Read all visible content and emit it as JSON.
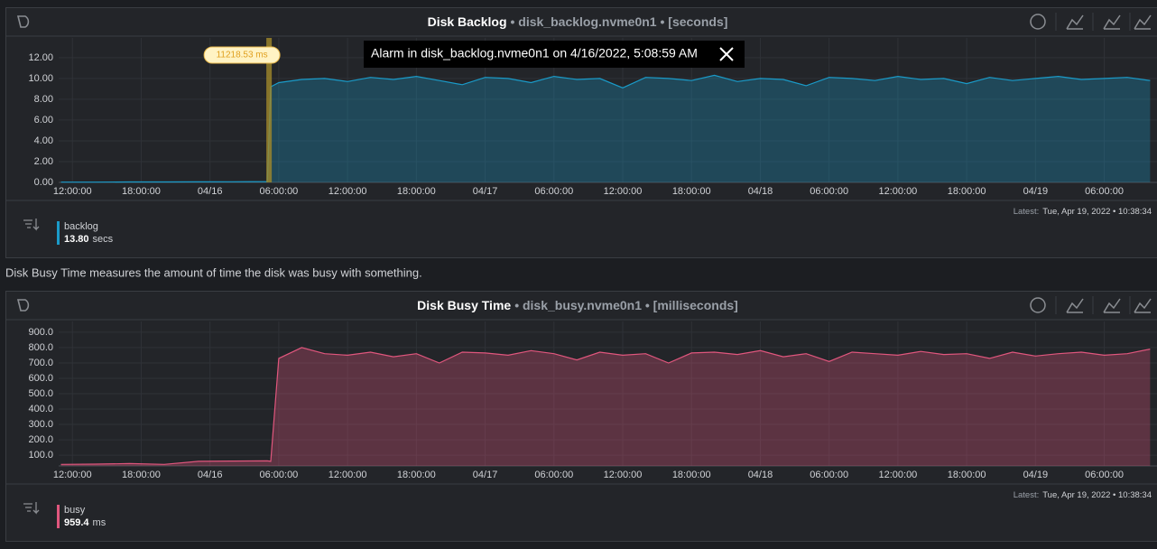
{
  "description": "Disk Busy Time measures the amount of time the disk was busy with something.",
  "chart_data": [
    {
      "type": "area",
      "title": "Disk Backlog",
      "subtitle": "• disk_backlog.nvme0n1 • [seconds]",
      "x": [
        -1,
        2,
        5,
        8,
        11,
        14,
        17,
        17.3,
        18,
        20,
        22,
        24,
        26,
        28,
        30,
        32,
        34,
        36,
        38,
        40,
        42,
        44,
        46,
        48,
        50,
        52,
        54,
        56,
        58,
        60,
        62,
        64,
        66,
        68,
        70,
        72,
        74,
        76,
        78,
        80,
        82,
        84,
        86,
        88,
        90,
        92,
        94
      ],
      "series": [
        {
          "name": "backlog",
          "color": "#1a9bc9",
          "values": [
            0.03,
            0.03,
            0.04,
            0.04,
            0.05,
            0.06,
            0.08,
            9.2,
            9.6,
            9.9,
            10.0,
            9.7,
            10.1,
            9.9,
            10.2,
            9.8,
            9.4,
            10.1,
            10.0,
            9.6,
            10.2,
            9.9,
            10.0,
            9.1,
            10.1,
            10.0,
            9.8,
            10.3,
            9.7,
            10.0,
            9.9,
            9.3,
            10.1,
            10.0,
            9.8,
            10.2,
            9.9,
            10.0,
            9.5,
            10.1,
            9.8,
            10.0,
            10.2,
            9.9,
            10.0,
            10.1,
            9.8
          ]
        }
      ],
      "xlim": [
        -1.2,
        94.6
      ],
      "xticks": [
        {
          "value": 0,
          "label": "12:00:00"
        },
        {
          "value": 6,
          "label": "18:00:00"
        },
        {
          "value": 12,
          "label": "04/16"
        },
        {
          "value": 18,
          "label": "06:00:00"
        },
        {
          "value": 24,
          "label": "12:00:00"
        },
        {
          "value": 30,
          "label": "18:00:00"
        },
        {
          "value": 36,
          "label": "04/17"
        },
        {
          "value": 42,
          "label": "06:00:00"
        },
        {
          "value": 48,
          "label": "12:00:00"
        },
        {
          "value": 54,
          "label": "18:00:00"
        },
        {
          "value": 60,
          "label": "04/18"
        },
        {
          "value": 66,
          "label": "06:00:00"
        },
        {
          "value": 72,
          "label": "12:00:00"
        },
        {
          "value": 78,
          "label": "18:00:00"
        },
        {
          "value": 84,
          "label": "04/19"
        },
        {
          "value": 90,
          "label": "06:00:00"
        }
      ],
      "ylim": [
        0,
        13.9
      ],
      "yticks": [
        {
          "value": 0,
          "label": "0.00"
        },
        {
          "value": 2,
          "label": "2.00"
        },
        {
          "value": 4,
          "label": "4.00"
        },
        {
          "value": 6,
          "label": "6.00"
        },
        {
          "value": 8,
          "label": "8.00"
        },
        {
          "value": 10,
          "label": "10.00"
        },
        {
          "value": 12,
          "label": "12.00"
        }
      ],
      "legend_value": "13.80",
      "legend_unit": "secs",
      "latest_label": "Latest:",
      "latest": "Tue, Apr 19, 2022 • 10:38:34",
      "annotation": {
        "x": 17.15,
        "label": "11218.53 ms"
      },
      "alarm": "Alarm in disk_backlog.nvme0n1 on 4/16/2022, 5:08:59 AM"
    },
    {
      "type": "area",
      "title": "Disk Busy Time",
      "subtitle": "• disk_busy.nvme0n1 • [milliseconds]",
      "x": [
        -1,
        2,
        5,
        8,
        11,
        14,
        17,
        17.3,
        18,
        20,
        22,
        24,
        26,
        28,
        30,
        32,
        34,
        36,
        38,
        40,
        42,
        44,
        46,
        48,
        50,
        52,
        54,
        56,
        58,
        60,
        62,
        64,
        66,
        68,
        70,
        72,
        74,
        76,
        78,
        80,
        82,
        84,
        86,
        88,
        90,
        92,
        94
      ],
      "series": [
        {
          "name": "busy",
          "color": "#e0567d",
          "values": [
            40,
            42,
            45,
            40,
            60,
            62,
            63,
            60,
            730,
            800,
            760,
            750,
            770,
            740,
            760,
            700,
            770,
            765,
            750,
            780,
            760,
            720,
            770,
            750,
            760,
            700,
            765,
            770,
            755,
            780,
            740,
            760,
            710,
            770,
            760,
            750,
            775,
            755,
            760,
            730,
            770,
            745,
            760,
            770,
            750,
            760,
            790
          ]
        }
      ],
      "xlim": [
        -1.2,
        94.6
      ],
      "xticks": [
        {
          "value": 0,
          "label": "12:00:00"
        },
        {
          "value": 6,
          "label": "18:00:00"
        },
        {
          "value": 12,
          "label": "04/16"
        },
        {
          "value": 18,
          "label": "06:00:00"
        },
        {
          "value": 24,
          "label": "12:00:00"
        },
        {
          "value": 30,
          "label": "18:00:00"
        },
        {
          "value": 36,
          "label": "04/17"
        },
        {
          "value": 42,
          "label": "06:00:00"
        },
        {
          "value": 48,
          "label": "12:00:00"
        },
        {
          "value": 54,
          "label": "18:00:00"
        },
        {
          "value": 60,
          "label": "04/18"
        },
        {
          "value": 66,
          "label": "06:00:00"
        },
        {
          "value": 72,
          "label": "12:00:00"
        },
        {
          "value": 78,
          "label": "18:00:00"
        },
        {
          "value": 84,
          "label": "04/19"
        },
        {
          "value": 90,
          "label": "06:00:00"
        }
      ],
      "ylim": [
        30,
        970
      ],
      "yticks": [
        {
          "value": 100,
          "label": "100.0"
        },
        {
          "value": 200,
          "label": "200.0"
        },
        {
          "value": 300,
          "label": "300.0"
        },
        {
          "value": 400,
          "label": "400.0"
        },
        {
          "value": 500,
          "label": "500.0"
        },
        {
          "value": 600,
          "label": "600.0"
        },
        {
          "value": 700,
          "label": "700.0"
        },
        {
          "value": 800,
          "label": "800.0"
        },
        {
          "value": 900,
          "label": "900.0"
        }
      ],
      "legend_value": "959.4",
      "legend_unit": "ms",
      "latest_label": "Latest:",
      "latest": "Tue, Apr 19, 2022 • 10:38:34"
    }
  ]
}
